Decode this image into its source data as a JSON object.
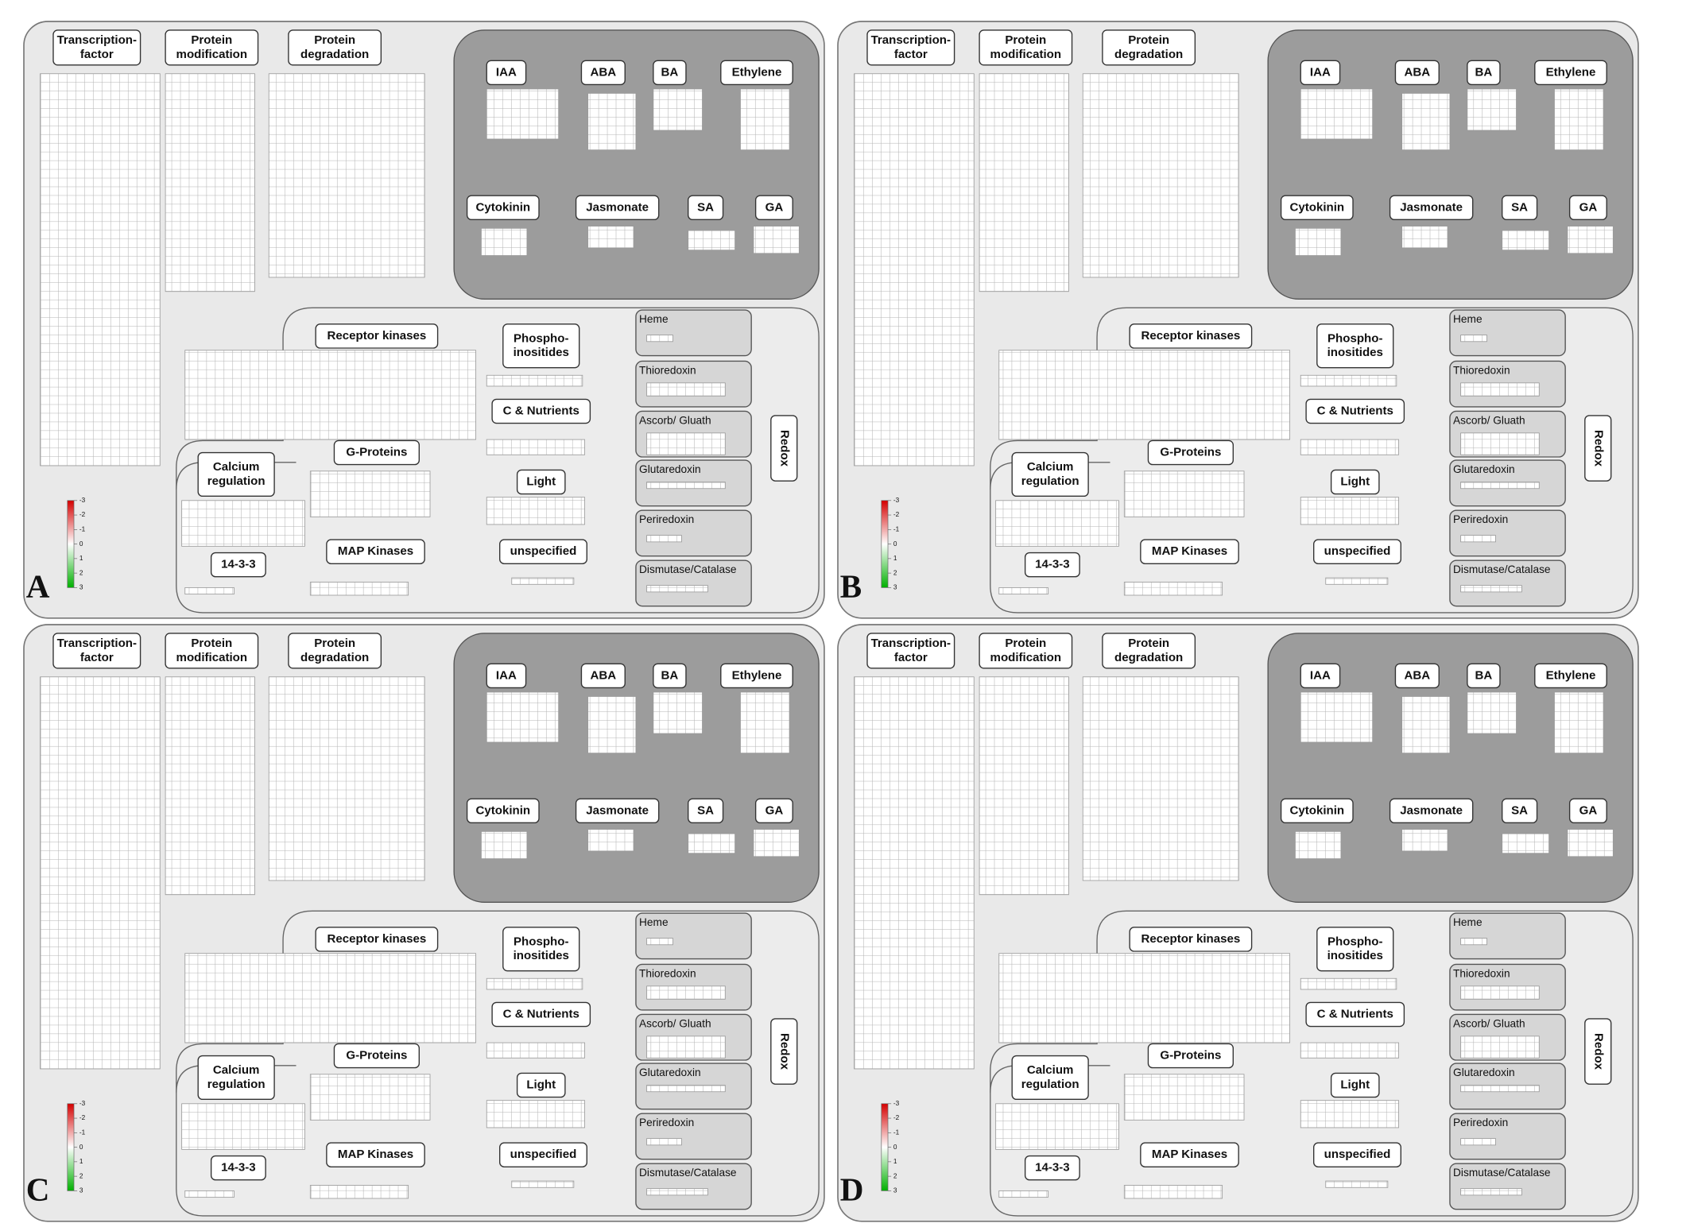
{
  "panels": [
    "A",
    "B",
    "C",
    "D"
  ],
  "labels": [
    [
      "Transcription-",
      "factor"
    ],
    [
      "Protein",
      "modification"
    ],
    [
      "Protein",
      "degradation"
    ],
    [
      "IAA"
    ],
    [
      "ABA"
    ],
    [
      "BA"
    ],
    [
      "Ethylene"
    ],
    [
      "Cytokinin"
    ],
    [
      "Jasmonate"
    ],
    [
      "SA"
    ],
    [
      "GA"
    ],
    [
      "Receptor kinases"
    ],
    [
      "Phospho-",
      "inositides"
    ],
    [
      "C & Nutrients"
    ],
    [
      "Light"
    ],
    [
      "unspecified"
    ],
    [
      "G-Proteins"
    ],
    [
      "Calcium",
      "regulation"
    ],
    [
      "14-3-3"
    ],
    [
      "MAP Kinases"
    ],
    [
      "Redox"
    ]
  ],
  "redox": [
    "Heme",
    "Thioredoxin",
    "Ascorb/ Gluath",
    "Glutaredoxin",
    "Periredoxin",
    "Dismutase/Catalase"
  ],
  "colorbar": {
    "ticks": [
      -3,
      -2,
      -1,
      0,
      1,
      2,
      3
    ]
  }
}
